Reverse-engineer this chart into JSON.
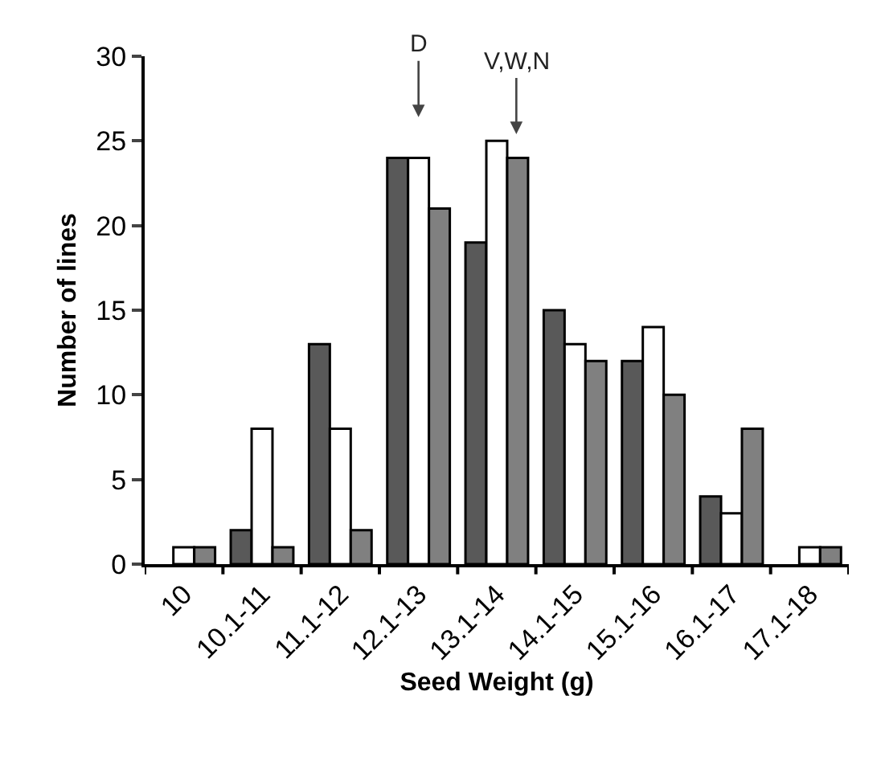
{
  "chart_data": {
    "type": "bar",
    "xlabel": "Seed Weight (g)",
    "ylabel": "Number of lines",
    "categories": [
      "10",
      "10.1-11",
      "11.1-12",
      "12.1-13",
      "13.1-14",
      "14.1-15",
      "15.1-16",
      "16.1-17",
      "17.1-18"
    ],
    "series": [
      {
        "color": "#595959",
        "values": [
          0,
          2,
          13,
          24,
          19,
          15,
          12,
          4,
          0
        ]
      },
      {
        "color": "#ffffff",
        "values": [
          1,
          8,
          8,
          24,
          25,
          13,
          14,
          3,
          1
        ]
      },
      {
        "color": "#808080",
        "values": [
          1,
          1,
          2,
          21,
          24,
          12,
          10,
          8,
          1
        ]
      }
    ],
    "ylim": [
      0,
      30
    ],
    "yticks": [
      0,
      5,
      10,
      15,
      20,
      25,
      30
    ],
    "grid": false,
    "annotations": [
      "D",
      "V,W,N"
    ]
  }
}
